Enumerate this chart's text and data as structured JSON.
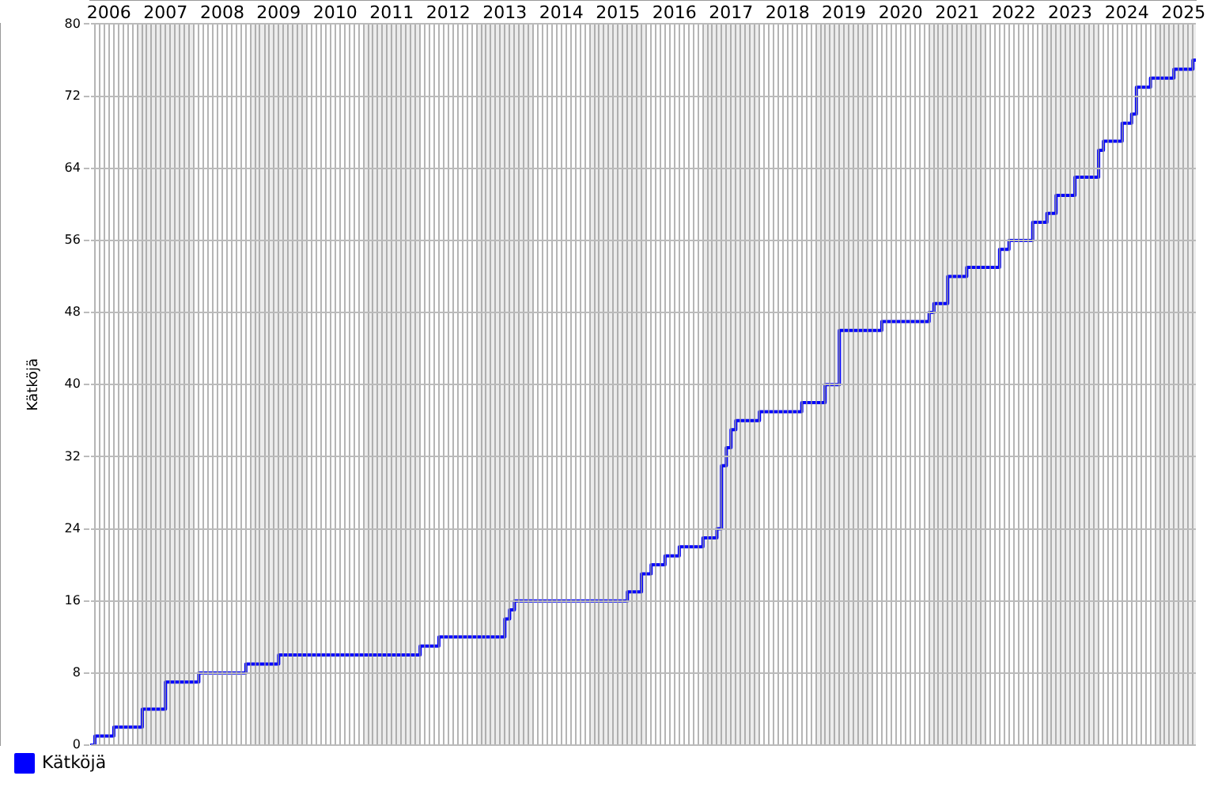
{
  "chart_data": {
    "type": "step",
    "ylabel": "Kätköjä",
    "legend": "bottom left",
    "grid": true,
    "line_style": "solid",
    "marker": "none",
    "xlim": [
      "2006-03-01",
      "2025-09-20"
    ],
    "ylim": [
      0,
      80
    ],
    "yticks": [
      0,
      8,
      16,
      24,
      32,
      40,
      48,
      56,
      64,
      72,
      80
    ],
    "xticks": [
      {
        "value": "2006-04",
        "label": null
      },
      {
        "value": "2006-05",
        "label": null
      },
      {
        "value": "2006-06",
        "label": null
      },
      {
        "value": "2006-07",
        "label": "2006"
      },
      {
        "value": "2006-08",
        "label": null
      },
      {
        "value": "2006-09",
        "label": null
      },
      {
        "value": "2006-10",
        "label": null
      },
      {
        "value": "2006-11",
        "label": null
      },
      {
        "value": "2006-12",
        "label": null
      },
      {
        "value": "2007-01",
        "label": null
      },
      {
        "value": "2007-02",
        "label": null
      },
      {
        "value": "2007-03",
        "label": null
      },
      {
        "value": "2007-04",
        "label": null
      },
      {
        "value": "2007-05",
        "label": null
      },
      {
        "value": "2007-06",
        "label": null
      },
      {
        "value": "2007-07",
        "label": "2007"
      },
      {
        "value": "2007-08",
        "label": null
      },
      {
        "value": "2007-09",
        "label": null
      },
      {
        "value": "2007-10",
        "label": null
      },
      {
        "value": "2007-11",
        "label": null
      },
      {
        "value": "2007-12",
        "label": null
      },
      {
        "value": "2008-01",
        "label": null
      },
      {
        "value": "2008-02",
        "label": null
      },
      {
        "value": "2008-03",
        "label": null
      },
      {
        "value": "2008-04",
        "label": null
      },
      {
        "value": "2008-05",
        "label": null
      },
      {
        "value": "2008-06",
        "label": null
      },
      {
        "value": "2008-07",
        "label": "2008"
      },
      {
        "value": "2008-08",
        "label": null
      },
      {
        "value": "2008-09",
        "label": null
      },
      {
        "value": "2008-10",
        "label": null
      },
      {
        "value": "2008-11",
        "label": null
      },
      {
        "value": "2008-12",
        "label": null
      },
      {
        "value": "2009-01",
        "label": null
      },
      {
        "value": "2009-02",
        "label": null
      },
      {
        "value": "2009-03",
        "label": null
      },
      {
        "value": "2009-04",
        "label": null
      },
      {
        "value": "2009-05",
        "label": null
      },
      {
        "value": "2009-06",
        "label": null
      },
      {
        "value": "2009-07",
        "label": "2009"
      },
      {
        "value": "2009-08",
        "label": null
      },
      {
        "value": "2009-09",
        "label": null
      },
      {
        "value": "2009-10",
        "label": null
      },
      {
        "value": "2009-11",
        "label": null
      },
      {
        "value": "2009-12",
        "label": null
      },
      {
        "value": "2010-01",
        "label": null
      },
      {
        "value": "2010-02",
        "label": null
      },
      {
        "value": "2010-03",
        "label": null
      },
      {
        "value": "2010-04",
        "label": null
      },
      {
        "value": "2010-05",
        "label": null
      },
      {
        "value": "2010-06",
        "label": null
      },
      {
        "value": "2010-07",
        "label": "2010"
      },
      {
        "value": "2010-08",
        "label": null
      },
      {
        "value": "2010-09",
        "label": null
      },
      {
        "value": "2010-10",
        "label": null
      },
      {
        "value": "2010-11",
        "label": null
      },
      {
        "value": "2010-12",
        "label": null
      },
      {
        "value": "2011-01",
        "label": null
      },
      {
        "value": "2011-02",
        "label": null
      },
      {
        "value": "2011-03",
        "label": null
      },
      {
        "value": "2011-04",
        "label": null
      },
      {
        "value": "2011-05",
        "label": null
      },
      {
        "value": "2011-06",
        "label": null
      },
      {
        "value": "2011-07",
        "label": "2011"
      },
      {
        "value": "2011-08",
        "label": null
      },
      {
        "value": "2011-09",
        "label": null
      },
      {
        "value": "2011-10",
        "label": null
      },
      {
        "value": "2011-11",
        "label": null
      },
      {
        "value": "2011-12",
        "label": null
      },
      {
        "value": "2012-01",
        "label": null
      },
      {
        "value": "2012-02",
        "label": null
      },
      {
        "value": "2012-03",
        "label": null
      },
      {
        "value": "2012-04",
        "label": null
      },
      {
        "value": "2012-05",
        "label": null
      },
      {
        "value": "2012-06",
        "label": null
      },
      {
        "value": "2012-07",
        "label": "2012"
      },
      {
        "value": "2012-08",
        "label": null
      },
      {
        "value": "2012-09",
        "label": null
      },
      {
        "value": "2012-10",
        "label": null
      },
      {
        "value": "2012-11",
        "label": null
      },
      {
        "value": "2012-12",
        "label": null
      },
      {
        "value": "2013-01",
        "label": null
      },
      {
        "value": "2013-02",
        "label": null
      },
      {
        "value": "2013-03",
        "label": null
      },
      {
        "value": "2013-04",
        "label": null
      },
      {
        "value": "2013-05",
        "label": null
      },
      {
        "value": "2013-06",
        "label": null
      },
      {
        "value": "2013-07",
        "label": "2013"
      },
      {
        "value": "2013-08",
        "label": null
      },
      {
        "value": "2013-09",
        "label": null
      },
      {
        "value": "2013-10",
        "label": null
      },
      {
        "value": "2013-11",
        "label": null
      },
      {
        "value": "2013-12",
        "label": null
      },
      {
        "value": "2014-01",
        "label": null
      },
      {
        "value": "2014-02",
        "label": null
      },
      {
        "value": "2014-03",
        "label": null
      },
      {
        "value": "2014-04",
        "label": null
      },
      {
        "value": "2014-05",
        "label": null
      },
      {
        "value": "2014-06",
        "label": null
      },
      {
        "value": "2014-07",
        "label": "2014"
      },
      {
        "value": "2014-08",
        "label": null
      },
      {
        "value": "2014-09",
        "label": null
      },
      {
        "value": "2014-10",
        "label": null
      },
      {
        "value": "2014-11",
        "label": null
      },
      {
        "value": "2014-12",
        "label": null
      },
      {
        "value": "2015-01",
        "label": null
      },
      {
        "value": "2015-02",
        "label": null
      },
      {
        "value": "2015-03",
        "label": null
      },
      {
        "value": "2015-04",
        "label": null
      },
      {
        "value": "2015-05",
        "label": null
      },
      {
        "value": "2015-06",
        "label": null
      },
      {
        "value": "2015-07",
        "label": "2015"
      },
      {
        "value": "2015-08",
        "label": null
      },
      {
        "value": "2015-09",
        "label": null
      },
      {
        "value": "2015-10",
        "label": null
      },
      {
        "value": "2015-11",
        "label": null
      },
      {
        "value": "2015-12",
        "label": null
      },
      {
        "value": "2016-01",
        "label": null
      },
      {
        "value": "2016-02",
        "label": null
      },
      {
        "value": "2016-03",
        "label": null
      },
      {
        "value": "2016-04",
        "label": null
      },
      {
        "value": "2016-05",
        "label": null
      },
      {
        "value": "2016-06",
        "label": null
      },
      {
        "value": "2016-07",
        "label": "2016"
      },
      {
        "value": "2016-08",
        "label": null
      },
      {
        "value": "2016-09",
        "label": null
      },
      {
        "value": "2016-10",
        "label": null
      },
      {
        "value": "2016-11",
        "label": null
      },
      {
        "value": "2016-12",
        "label": null
      },
      {
        "value": "2017-01",
        "label": null
      },
      {
        "value": "2017-02",
        "label": null
      },
      {
        "value": "2017-03",
        "label": null
      },
      {
        "value": "2017-04",
        "label": null
      },
      {
        "value": "2017-05",
        "label": null
      },
      {
        "value": "2017-06",
        "label": null
      },
      {
        "value": "2017-07",
        "label": "2017"
      },
      {
        "value": "2017-08",
        "label": null
      },
      {
        "value": "2017-09",
        "label": null
      },
      {
        "value": "2017-10",
        "label": null
      },
      {
        "value": "2017-11",
        "label": null
      },
      {
        "value": "2017-12",
        "label": null
      },
      {
        "value": "2018-01",
        "label": null
      },
      {
        "value": "2018-02",
        "label": null
      },
      {
        "value": "2018-03",
        "label": null
      },
      {
        "value": "2018-04",
        "label": null
      },
      {
        "value": "2018-05",
        "label": null
      },
      {
        "value": "2018-06",
        "label": null
      },
      {
        "value": "2018-07",
        "label": "2018"
      },
      {
        "value": "2018-08",
        "label": null
      },
      {
        "value": "2018-09",
        "label": null
      },
      {
        "value": "2018-10",
        "label": null
      },
      {
        "value": "2018-11",
        "label": null
      },
      {
        "value": "2018-12",
        "label": null
      },
      {
        "value": "2019-01",
        "label": null
      },
      {
        "value": "2019-02",
        "label": null
      },
      {
        "value": "2019-03",
        "label": null
      },
      {
        "value": "2019-04",
        "label": null
      },
      {
        "value": "2019-05",
        "label": null
      },
      {
        "value": "2019-06",
        "label": null
      },
      {
        "value": "2019-07",
        "label": "2019"
      },
      {
        "value": "2019-08",
        "label": null
      },
      {
        "value": "2019-09",
        "label": null
      },
      {
        "value": "2019-10",
        "label": null
      },
      {
        "value": "2019-11",
        "label": null
      },
      {
        "value": "2019-12",
        "label": null
      },
      {
        "value": "2020-01",
        "label": null
      },
      {
        "value": "2020-02",
        "label": null
      },
      {
        "value": "2020-03",
        "label": null
      },
      {
        "value": "2020-04",
        "label": null
      },
      {
        "value": "2020-05",
        "label": null
      },
      {
        "value": "2020-06",
        "label": null
      },
      {
        "value": "2020-07",
        "label": "2020"
      },
      {
        "value": "2020-08",
        "label": null
      },
      {
        "value": "2020-09",
        "label": null
      },
      {
        "value": "2020-10",
        "label": null
      },
      {
        "value": "2020-11",
        "label": null
      },
      {
        "value": "2020-12",
        "label": null
      },
      {
        "value": "2021-01",
        "label": null
      },
      {
        "value": "2021-02",
        "label": null
      },
      {
        "value": "2021-03",
        "label": null
      },
      {
        "value": "2021-04",
        "label": null
      },
      {
        "value": "2021-05",
        "label": null
      },
      {
        "value": "2021-06",
        "label": null
      },
      {
        "value": "2021-07",
        "label": "2021"
      },
      {
        "value": "2021-08",
        "label": null
      },
      {
        "value": "2021-09",
        "label": null
      },
      {
        "value": "2021-10",
        "label": null
      },
      {
        "value": "2021-11",
        "label": null
      },
      {
        "value": "2021-12",
        "label": null
      },
      {
        "value": "2022-01",
        "label": null
      },
      {
        "value": "2022-02",
        "label": null
      },
      {
        "value": "2022-03",
        "label": null
      },
      {
        "value": "2022-04",
        "label": null
      },
      {
        "value": "2022-05",
        "label": null
      },
      {
        "value": "2022-06",
        "label": null
      },
      {
        "value": "2022-07",
        "label": "2022"
      },
      {
        "value": "2022-08",
        "label": null
      },
      {
        "value": "2022-09",
        "label": null
      },
      {
        "value": "2022-10",
        "label": null
      },
      {
        "value": "2022-11",
        "label": null
      },
      {
        "value": "2022-12",
        "label": null
      },
      {
        "value": "2023-01",
        "label": null
      },
      {
        "value": "2023-02",
        "label": null
      },
      {
        "value": "2023-03",
        "label": null
      },
      {
        "value": "2023-04",
        "label": null
      },
      {
        "value": "2023-05",
        "label": null
      },
      {
        "value": "2023-06",
        "label": null
      },
      {
        "value": "2023-07",
        "label": "2023"
      },
      {
        "value": "2023-08",
        "label": null
      },
      {
        "value": "2023-09",
        "label": null
      },
      {
        "value": "2023-10",
        "label": null
      },
      {
        "value": "2023-11",
        "label": null
      },
      {
        "value": "2023-12",
        "label": null
      },
      {
        "value": "2024-01",
        "label": null
      },
      {
        "value": "2024-02",
        "label": null
      },
      {
        "value": "2024-03",
        "label": null
      },
      {
        "value": "2024-04",
        "label": null
      },
      {
        "value": "2024-05",
        "label": null
      },
      {
        "value": "2024-06",
        "label": null
      },
      {
        "value": "2024-07",
        "label": "2024"
      },
      {
        "value": "2024-08",
        "label": null
      },
      {
        "value": "2024-09",
        "label": null
      },
      {
        "value": "2024-10",
        "label": null
      },
      {
        "value": "2024-11",
        "label": null
      },
      {
        "value": "2024-12",
        "label": null
      },
      {
        "value": "2025-01",
        "label": null
      },
      {
        "value": "2025-02",
        "label": null
      },
      {
        "value": "2025-03",
        "label": null
      },
      {
        "value": "2025-04",
        "label": null
      },
      {
        "value": "2025-05",
        "label": null
      },
      {
        "value": "2025-06",
        "label": null
      },
      {
        "value": "2025-07",
        "label": "2025"
      },
      {
        "value": "2025-08",
        "label": null
      },
      {
        "value": "2025-09",
        "label": null
      }
    ],
    "bands": [
      {
        "axis": "x",
        "from": "2007-01",
        "to": "2008-01",
        "color": "#ececec"
      },
      {
        "axis": "x",
        "from": "2009-01",
        "to": "2010-01",
        "color": "#ececec"
      },
      {
        "axis": "x",
        "from": "2011-01",
        "to": "2012-01",
        "color": "#ececec"
      },
      {
        "axis": "x",
        "from": "2013-01",
        "to": "2014-01",
        "color": "#ececec"
      },
      {
        "axis": "x",
        "from": "2015-01",
        "to": "2016-01",
        "color": "#ececec"
      },
      {
        "axis": "x",
        "from": "2017-01",
        "to": "2018-01",
        "color": "#ececec"
      },
      {
        "axis": "x",
        "from": "2019-01",
        "to": "2020-01",
        "color": "#ececec"
      },
      {
        "axis": "x",
        "from": "2021-01",
        "to": "2022-01",
        "color": "#ececec"
      },
      {
        "axis": "x",
        "from": "2023-01",
        "to": "2024-01",
        "color": "#ececec"
      },
      {
        "axis": "x",
        "from": "2025-01",
        "to": "2025-09-20",
        "color": "#ececec"
      }
    ],
    "series": [
      {
        "name": "Kätköjä",
        "color": "#0000ff",
        "x": [
          "2006-03",
          "2006-04",
          "2006-08",
          "2007-02",
          "2007-07",
          "2008-02",
          "2008-12",
          "2009-07",
          "2012-01",
          "2012-05",
          "2013-07",
          "2013-08",
          "2013-09",
          "2015-09",
          "2015-12",
          "2016-02",
          "2016-05",
          "2016-08",
          "2017-01",
          "2017-04",
          "2017-05",
          "2017-06",
          "2017-07",
          "2017-08",
          "2018-01",
          "2018-10",
          "2019-03",
          "2019-06",
          "2020-03",
          "2021-01",
          "2021-02",
          "2021-05",
          "2021-09",
          "2022-04",
          "2022-06",
          "2022-11",
          "2023-02",
          "2023-04",
          "2023-08",
          "2024-01",
          "2024-02",
          "2024-06",
          "2024-08",
          "2024-09",
          "2024-12",
          "2025-05",
          "2025-09",
          "2025-09-20"
        ],
        "values": [
          0,
          1,
          2,
          4,
          7,
          8,
          9,
          10,
          11,
          12,
          14,
          15,
          16,
          17,
          19,
          20,
          21,
          22,
          23,
          24,
          31,
          33,
          35,
          36,
          37,
          38,
          40,
          46,
          47,
          48,
          49,
          52,
          53,
          55,
          56,
          58,
          59,
          61,
          63,
          66,
          67,
          69,
          70,
          73,
          74,
          75,
          76,
          76
        ]
      }
    ]
  }
}
